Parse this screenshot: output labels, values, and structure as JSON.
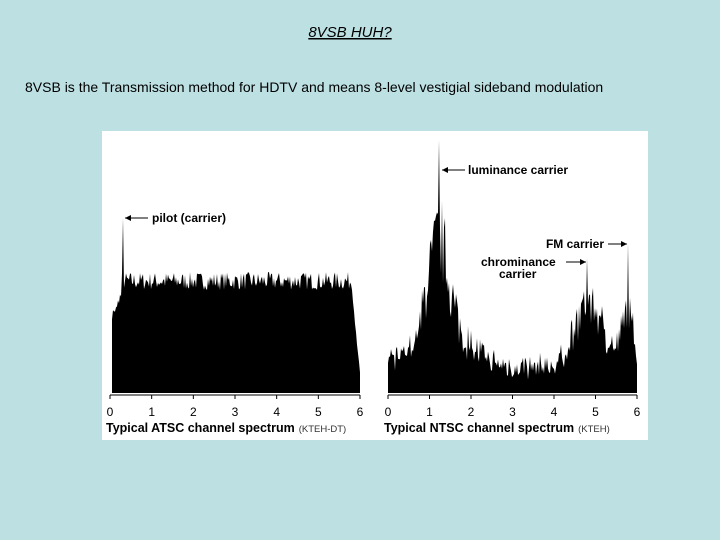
{
  "slide": {
    "title": "8VSB   HUH?",
    "subtitle": "8VSB is the Transmission method for HDTV and means 8-level vestigial sideband modulation",
    "figure": {
      "panels": [
        {
          "ticks": [
            "0",
            "1",
            "2",
            "3",
            "4",
            "5",
            "6"
          ],
          "caption": "Typical ATSC channel spectrum",
          "source": "(KTEH-DT)",
          "annotations": [
            "pilot (carrier)"
          ]
        },
        {
          "ticks": [
            "0",
            "1",
            "2",
            "3",
            "4",
            "5",
            "6"
          ],
          "caption": "Typical NTSC channel spectrum",
          "source": "(KTEH)",
          "annotations": [
            "luminance carrier",
            "FM carrier",
            "chrominance",
            "carrier"
          ]
        }
      ]
    }
  }
}
